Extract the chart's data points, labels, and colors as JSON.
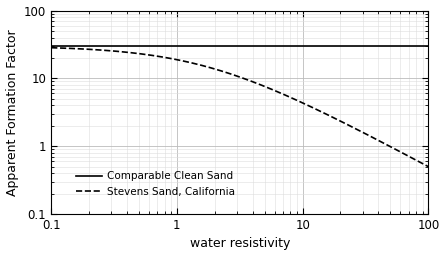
{
  "xlabel": "water resistivity",
  "ylabel": "Apparent Formation Factor",
  "xlim": [
    0.1,
    100
  ],
  "ylim": [
    0.1,
    100
  ],
  "clean_sand_F": 30,
  "BQv": 0.59,
  "legend_labels": [
    "Comparable Clean Sand",
    "Stevens Sand, California"
  ],
  "line_color": "#000000",
  "background_color": "#ffffff",
  "grid_major_color": "#bbbbbb",
  "grid_minor_color": "#dddddd",
  "xtick_labels": [
    "0.1",
    "1",
    "10",
    "100"
  ],
  "xtick_values": [
    0.1,
    1,
    10,
    100
  ],
  "ytick_labels": [
    "0.1",
    "1",
    "10",
    "100"
  ],
  "ytick_values": [
    0.1,
    1,
    10,
    100
  ]
}
